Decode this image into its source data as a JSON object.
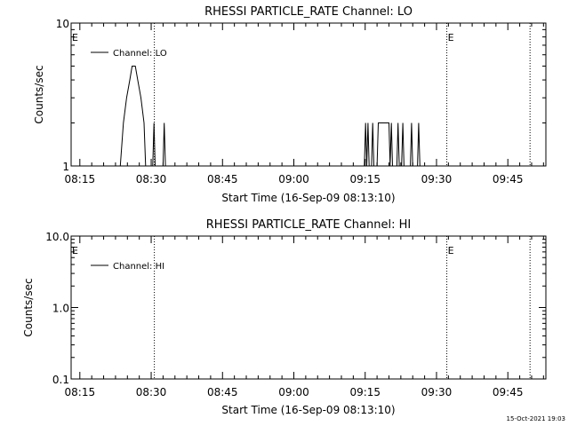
{
  "footer": {
    "timestamp": "15-Oct-2021 19:03"
  },
  "chart_data": [
    {
      "type": "line",
      "title": "RHESSI PARTICLE_RATE Channel: LO",
      "xlabel": "Start Time (16-Sep-09 08:13:10)",
      "ylabel": "Counts/sec",
      "y_scale": "log",
      "ylim": [
        1,
        10
      ],
      "y_ticks": [
        1,
        10
      ],
      "y_tick_labels": [
        "1",
        "10"
      ],
      "xlim": [
        "08:13:10",
        "09:53:00"
      ],
      "x_ticks": [
        "08:15",
        "08:30",
        "08:45",
        "09:00",
        "09:15",
        "09:30",
        "09:45"
      ],
      "legend": {
        "position": "top-left",
        "entries": [
          "Channel: LO"
        ]
      },
      "event_lines": [
        {
          "time": "08:30:40",
          "label": ""
        },
        {
          "time": "09:32:10",
          "label": "E"
        },
        {
          "time": "09:49:40",
          "label": ""
        }
      ],
      "left_event_label": "E",
      "series": [
        {
          "name": "Channel: LO",
          "points": [
            [
              "08:23:30",
              1.0
            ],
            [
              "08:24:10",
              2.0
            ],
            [
              "08:24:50",
              3.0
            ],
            [
              "08:25:30",
              4.0
            ],
            [
              "08:26:00",
              5.0
            ],
            [
              "08:26:40",
              5.0
            ],
            [
              "08:27:10",
              4.0
            ],
            [
              "08:27:50",
              3.0
            ],
            [
              "08:28:30",
              2.0
            ],
            [
              "08:28:50",
              1.0
            ],
            [
              "08:30:20",
              1.0
            ],
            [
              "08:30:35",
              2.0
            ],
            [
              "08:30:50",
              1.0
            ],
            [
              "08:32:30",
              1.0
            ],
            [
              "08:32:45",
              2.0
            ],
            [
              "08:33:00",
              1.0
            ],
            [
              "09:14:50",
              1.0
            ],
            [
              "09:15:05",
              2.0
            ],
            [
              "09:15:20",
              1.0
            ],
            [
              "09:15:35",
              2.0
            ],
            [
              "09:15:50",
              1.0
            ],
            [
              "09:16:20",
              1.0
            ],
            [
              "09:16:35",
              2.0
            ],
            [
              "09:16:50",
              1.0
            ],
            [
              "09:17:30",
              1.0
            ],
            [
              "09:17:45",
              2.0
            ],
            [
              "09:20:00",
              2.0
            ],
            [
              "09:20:15",
              1.0
            ],
            [
              "09:20:30",
              2.0
            ],
            [
              "09:20:45",
              1.0
            ],
            [
              "09:21:40",
              1.0
            ],
            [
              "09:21:55",
              2.0
            ],
            [
              "09:22:10",
              1.0
            ],
            [
              "09:22:40",
              1.0
            ],
            [
              "09:22:55",
              2.0
            ],
            [
              "09:23:10",
              1.0
            ],
            [
              "09:24:30",
              1.0
            ],
            [
              "09:24:45",
              2.0
            ],
            [
              "09:25:00",
              1.0
            ],
            [
              "09:26:00",
              1.0
            ],
            [
              "09:26:15",
              2.0
            ],
            [
              "09:26:30",
              1.0
            ]
          ]
        }
      ]
    },
    {
      "type": "line",
      "title": "RHESSI PARTICLE_RATE Channel: HI",
      "xlabel": "Start Time (16-Sep-09 08:13:10)",
      "ylabel": "Counts/sec",
      "y_scale": "log",
      "ylim": [
        0.1,
        10
      ],
      "y_ticks": [
        0.1,
        1,
        10
      ],
      "y_tick_labels": [
        "0.1",
        "1.0",
        "10.0"
      ],
      "xlim": [
        "08:13:10",
        "09:53:00"
      ],
      "x_ticks": [
        "08:15",
        "08:30",
        "08:45",
        "09:00",
        "09:15",
        "09:30",
        "09:45"
      ],
      "legend": {
        "position": "top-left",
        "entries": [
          "Channel: HI"
        ]
      },
      "event_lines": [
        {
          "time": "08:30:40",
          "label": ""
        },
        {
          "time": "09:32:10",
          "label": "E"
        },
        {
          "time": "09:49:40",
          "label": ""
        }
      ],
      "left_event_label": "E",
      "series": [
        {
          "name": "Channel: HI",
          "points": []
        }
      ]
    }
  ]
}
